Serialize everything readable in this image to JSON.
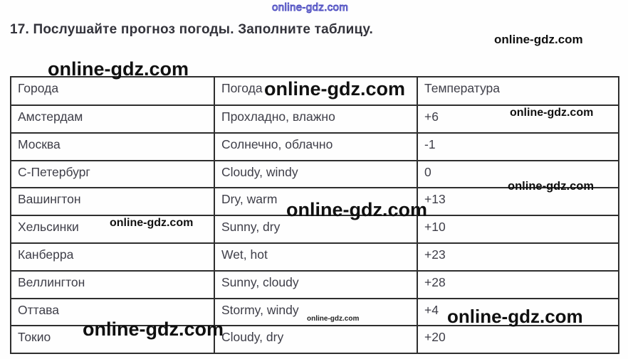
{
  "page": {
    "title": "17. Послушайте прогноз погоды. Заполните таблицу."
  },
  "watermark": {
    "text": "online-gdz.com"
  },
  "table": {
    "columns": [
      "Города",
      "Погода",
      "Температура"
    ],
    "rows": [
      {
        "city": "Амстердам",
        "weather": "Прохладно, влажно",
        "temp": "+6"
      },
      {
        "city": "Москва",
        "weather": "Солнечно, облачно",
        "temp": "-1"
      },
      {
        "city": "С-Петербург",
        "weather": "Cloudy, windy",
        "temp": "0"
      },
      {
        "city": "Вашингтон",
        "weather": "Dry, warm",
        "temp": "+13"
      },
      {
        "city": "Хельсинки",
        "weather": "Sunny, dry",
        "temp": "+10"
      },
      {
        "city": "Канберра",
        "weather": "Wet, hot",
        "temp": "+23"
      },
      {
        "city": "Веллингтон",
        "weather": "Sunny, cloudy",
        "temp": "+28"
      },
      {
        "city": "Оттава",
        "weather": "Stormy, windy",
        "temp": "+4"
      },
      {
        "city": "Токио",
        "weather": "Cloudy, dry",
        "temp": "+20"
      }
    ]
  }
}
